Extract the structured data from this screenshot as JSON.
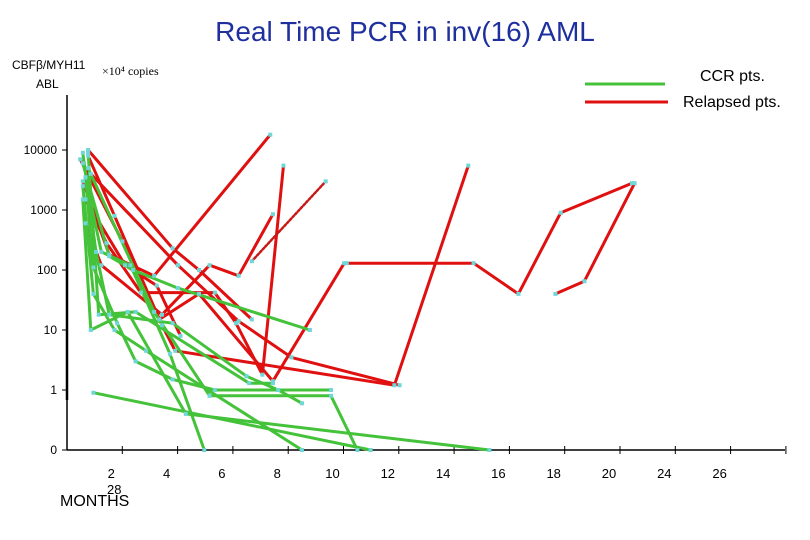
{
  "chart_data": {
    "type": "line",
    "title": "Real Time PCR in inv(16) AML",
    "ylabel_line1": "CBFβ/MYH11",
    "ylabel_line2": "ABL",
    "units_label": "×10⁴ copies",
    "xlabel": "MONTHS",
    "stray_label": "28",
    "x_ticks": [
      2,
      4,
      6,
      8,
      10,
      12,
      14,
      16,
      18,
      20,
      24,
      26
    ],
    "y_ticks": [
      {
        "label": "0",
        "value": 0.1
      },
      {
        "label": "1",
        "value": 1
      },
      {
        "label": "10",
        "value": 10
      },
      {
        "label": "100",
        "value": 100
      },
      {
        "label": "1000",
        "value": 1000
      },
      {
        "label": "10000",
        "value": 10000
      }
    ],
    "y_scale": "log",
    "ylim": [
      0.1,
      30000
    ],
    "legend": [
      {
        "label": "CCR pts.",
        "color": "#44c23a"
      },
      {
        "label": "Relapsed pts.",
        "color": "#e01010"
      }
    ],
    "series_colors": {
      "ccr": "#44c23a",
      "relapsed": "#e01010",
      "dotted": "#c81818",
      "marker": "#6fd7d7"
    },
    "series": [
      {
        "group": "relapsed",
        "x": [
          0.6,
          1.6,
          3.3,
          7.7
        ],
        "y": [
          3000,
          180,
          80,
          18000
        ]
      },
      {
        "group": "relapsed",
        "x": [
          0.7,
          1.5,
          2.8,
          5.6,
          6.4,
          7.4,
          8.2
        ],
        "y": [
          1500,
          280,
          42,
          42,
          13,
          1.8,
          5500
        ]
      },
      {
        "group": "relapsed",
        "x": [
          0.7,
          1.3,
          3.6,
          5.4,
          6.5,
          7.8
        ],
        "y": [
          600,
          120,
          18,
          120,
          80,
          850
        ]
      },
      {
        "group": "relapsed",
        "x": [
          0.8,
          1.8,
          3.5,
          5.0,
          7.8,
          10.5
        ],
        "y": [
          8000,
          800,
          15,
          40,
          1.4,
          130
        ]
      },
      {
        "group": "relapsed",
        "x": [
          0.5,
          2.1,
          3.6,
          4.1,
          12.4,
          15.2
        ],
        "y": [
          7000,
          300,
          12,
          4.5,
          1.2,
          5500
        ]
      },
      {
        "group": "relapsed",
        "x": [
          10.6,
          15.4,
          17.1,
          18.7,
          21.4
        ],
        "y": [
          130,
          130,
          40,
          900,
          2800
        ]
      },
      {
        "group": "relapsed",
        "x": [
          0.8,
          4.0,
          5.0,
          7.0
        ],
        "y": [
          10000,
          230,
          100,
          15
        ]
      },
      {
        "group": "relapsed",
        "x": [
          0.9,
          4.2,
          6.5,
          8.5,
          12.6
        ],
        "y": [
          4000,
          120,
          14,
          3.5,
          1.2
        ]
      },
      {
        "group": "relapsed",
        "x": [
          0.7,
          2.2,
          3.4,
          4.3
        ],
        "y": [
          1500,
          120,
          55,
          8
        ]
      },
      {
        "group": "relapsed",
        "x": [
          18.5,
          19.6,
          21.5
        ],
        "y": [
          40,
          65,
          2800
        ]
      },
      {
        "group": "dotted",
        "x": [
          7.0,
          9.8
        ],
        "y": [
          140,
          3000
        ]
      },
      {
        "group": "ccr",
        "x": [
          0.6,
          1.1,
          1.6,
          4.0,
          6.8,
          8.0,
          8.9
        ],
        "y": [
          9000,
          200,
          18,
          13,
          1.7,
          1.0,
          0.6
        ]
      },
      {
        "group": "ccr",
        "x": [
          0.6,
          1.6,
          2.5,
          4.2,
          9.2
        ],
        "y": [
          6000,
          170,
          100,
          50,
          10
        ]
      },
      {
        "group": "ccr",
        "x": [
          0.7,
          1.3,
          2.4,
          3.9,
          5.2
        ],
        "y": [
          3500,
          200,
          120,
          4,
          0.1
        ]
      },
      {
        "group": "ccr",
        "x": [
          0.8,
          1.2,
          2.6,
          6.9,
          7.8
        ],
        "y": [
          9000,
          18,
          20,
          1.3,
          1.3
        ]
      },
      {
        "group": "ccr",
        "x": [
          0.6,
          1.0,
          1.8,
          3.0,
          8.9
        ],
        "y": [
          2500,
          40,
          10,
          4.5,
          0.1
        ]
      },
      {
        "group": "ccr",
        "x": [
          0.7,
          1.0,
          1.9,
          2.6,
          4.0,
          5.6,
          10.0
        ],
        "y": [
          3500,
          110,
          13,
          3,
          1.5,
          1.0,
          1.0
        ]
      },
      {
        "group": "ccr",
        "x": [
          1.0,
          11.5
        ],
        "y": [
          0.9,
          0.1
        ]
      },
      {
        "group": "ccr",
        "x": [
          0.8,
          3.3,
          5.4,
          10.0,
          11.0
        ],
        "y": [
          5000,
          20,
          0.8,
          0.8,
          0.1
        ]
      },
      {
        "group": "ccr",
        "x": [
          0.6,
          0.9,
          2.3,
          4.5,
          16.0
        ],
        "y": [
          1500,
          10,
          20,
          0.4,
          0.1
        ]
      }
    ]
  }
}
